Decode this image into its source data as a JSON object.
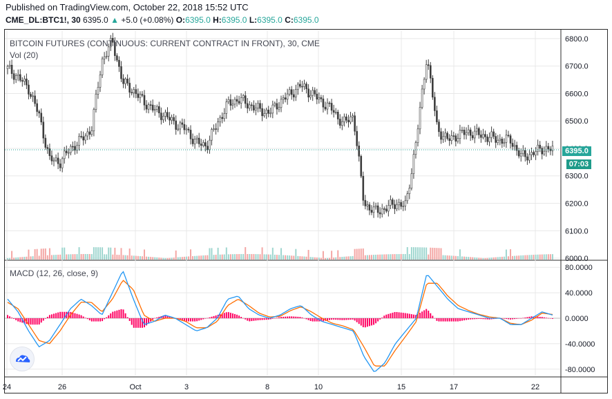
{
  "header": {
    "published": "Published on TradingView.com, October 22, 2018 15:52 UTC",
    "symbol": "CME_DL:BTC1!, 30",
    "last": "6395.0",
    "change": "+5.0 (+0.08%)",
    "open_label": "O:",
    "open": "6395.0",
    "high_label": "H:",
    "high": "6395.0",
    "low_label": "L:",
    "low": "6395.0",
    "close_label": "C:",
    "close": "6395.0"
  },
  "price_pane": {
    "title": "BITCOIN FUTURES (CONTINUOUS: CURRENT CONTRACT IN FRONT), 30, CME",
    "volume_label": "Vol (20)",
    "last_price_tag": "6395.0",
    "countdown_tag": "07:03"
  },
  "macd_pane": {
    "title": "MACD (12, 26, close, 9)"
  },
  "colors": {
    "up": "#26a69a",
    "down": "#ef5350",
    "candle": "#3d3d3d",
    "macd": "#2196f3",
    "signal": "#ff6d00",
    "histogram": "#ff0062",
    "volume": "#26a69a",
    "last_line": "#26a69a",
    "grid": "#e8e8e8"
  },
  "chart_data": [
    {
      "type": "line",
      "title": "BITCOIN FUTURES (CONTINUOUS: CURRENT CONTRACT IN FRONT), 30, CME",
      "style": "candlestick",
      "x_ticks": [
        "24",
        "26",
        "Oct",
        "3",
        "8",
        "10",
        "15",
        "17",
        "22"
      ],
      "y_ticks": [
        "6000.0",
        "6100.0",
        "6200.0",
        "6300.0",
        "6400.0",
        "6500.0",
        "6600.0",
        "6700.0",
        "6800.0"
      ],
      "ylim": [
        5995,
        6830
      ],
      "last_price": 6395.0,
      "grid": true,
      "series": [
        {
          "x": [
            "24",
            "24",
            "25",
            "25",
            "25",
            "26",
            "26",
            "27",
            "27",
            "28",
            "28",
            "29",
            "29",
            "30",
            "30",
            "Oct",
            "1",
            "2",
            "2",
            "3",
            "3",
            "4",
            "4",
            "5",
            "5",
            "6",
            "7",
            "8",
            "8",
            "9",
            "9",
            "10",
            "10",
            "11",
            "11",
            "12",
            "12",
            "13",
            "14",
            "15",
            "15",
            "15",
            "16",
            "16",
            "17",
            "17",
            "18",
            "18",
            "19",
            "19",
            "20",
            "21",
            "22"
          ],
          "values": [
            6690,
            6660,
            6620,
            6520,
            6360,
            6350,
            6400,
            6430,
            6470,
            6720,
            6790,
            6640,
            6610,
            6570,
            6540,
            6520,
            6490,
            6470,
            6420,
            6410,
            6490,
            6560,
            6580,
            6560,
            6540,
            6530,
            6570,
            6600,
            6630,
            6600,
            6570,
            6540,
            6490,
            6520,
            6200,
            6170,
            6180,
            6200,
            6190,
            6430,
            6740,
            6470,
            6430,
            6450,
            6460,
            6450,
            6440,
            6430,
            6430,
            6370,
            6380,
            6400,
            6395
          ]
        }
      ]
    },
    {
      "type": "bar",
      "title": "Vol (20)",
      "style": "volume histogram",
      "note_source": "volume bars along the bottom of the price pane; no scale printed"
    },
    {
      "type": "line",
      "title": "MACD (12, 26, close, 9)",
      "y_ticks": [
        "80.0000",
        "40.0000",
        "0.0000",
        "-40.0000",
        "-80.0000"
      ],
      "ylim": [
        -90,
        90
      ],
      "grid": true,
      "series": [
        {
          "name": "MACD",
          "values": [
            30,
            10,
            -20,
            -45,
            -35,
            -10,
            15,
            30,
            20,
            5,
            40,
            75,
            30,
            -10,
            -5,
            5,
            0,
            -10,
            -20,
            -15,
            0,
            30,
            35,
            15,
            5,
            0,
            5,
            15,
            20,
            5,
            -5,
            -10,
            -15,
            -20,
            -60,
            -85,
            -70,
            -40,
            -20,
            0,
            70,
            50,
            30,
            15,
            10,
            5,
            0,
            0,
            -10,
            -10,
            0,
            10,
            5
          ]
        },
        {
          "name": "Signal",
          "values": [
            25,
            15,
            -10,
            -35,
            -40,
            -20,
            5,
            25,
            25,
            10,
            30,
            60,
            45,
            5,
            -5,
            0,
            0,
            -5,
            -15,
            -15,
            -5,
            20,
            30,
            20,
            8,
            2,
            3,
            12,
            18,
            10,
            0,
            -8,
            -12,
            -18,
            -45,
            -75,
            -75,
            -50,
            -28,
            -5,
            55,
            55,
            35,
            20,
            12,
            6,
            2,
            0,
            -8,
            -10,
            -3,
            8,
            6
          ]
        }
      ]
    }
  ]
}
